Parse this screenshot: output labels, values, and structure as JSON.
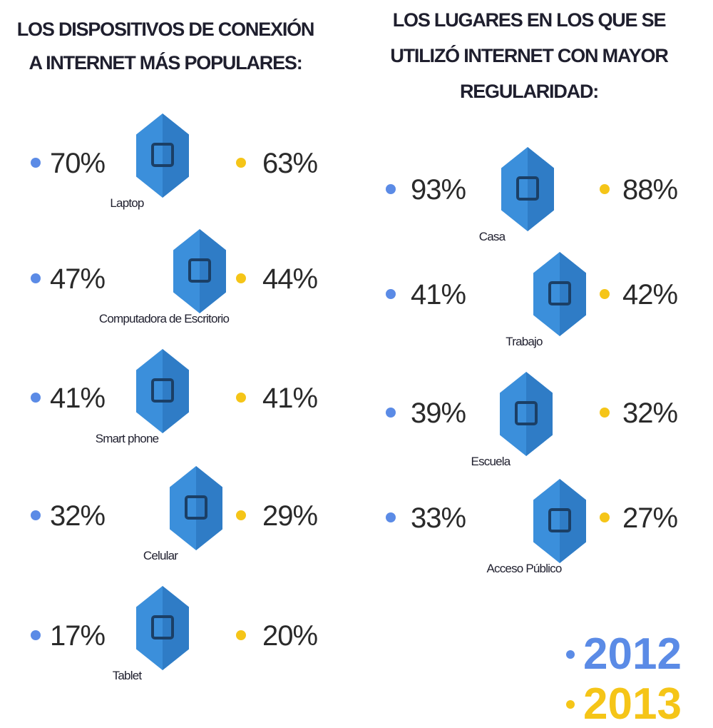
{
  "left": {
    "title": [
      "LOS DISPOSITIVOS DE CONEXIÓN",
      "A INTERNET MÁS POPULARES:"
    ],
    "items": [
      {
        "label": "Laptop",
        "v2012": "70%",
        "v2013": "63%"
      },
      {
        "label": "Computadora de Escritorio",
        "v2012": "47%",
        "v2013": "44%"
      },
      {
        "label": "Smart phone",
        "v2012": "41%",
        "v2013": "41%"
      },
      {
        "label": "Celular",
        "v2012": "32%",
        "v2013": "29%"
      },
      {
        "label": "Tablet",
        "v2012": "17%",
        "v2013": "20%"
      }
    ]
  },
  "right": {
    "title": [
      "LOS LUGARES EN LOS QUE SE",
      "UTILIZÓ INTERNET CON MAYOR",
      "REGULARIDAD:"
    ],
    "items": [
      {
        "label": "Casa",
        "v2012": "93%",
        "v2013": "88%"
      },
      {
        "label": "Trabajo",
        "v2012": "41%",
        "v2013": "42%"
      },
      {
        "label": "Escuela",
        "v2012": "39%",
        "v2013": "32%"
      },
      {
        "label": "Acceso Público",
        "v2012": "33%",
        "v2013": "27%"
      }
    ]
  },
  "legend": [
    {
      "label": "2012",
      "color": "#5b8be6"
    },
    {
      "label": "2013",
      "color": "#f5c518"
    }
  ]
}
